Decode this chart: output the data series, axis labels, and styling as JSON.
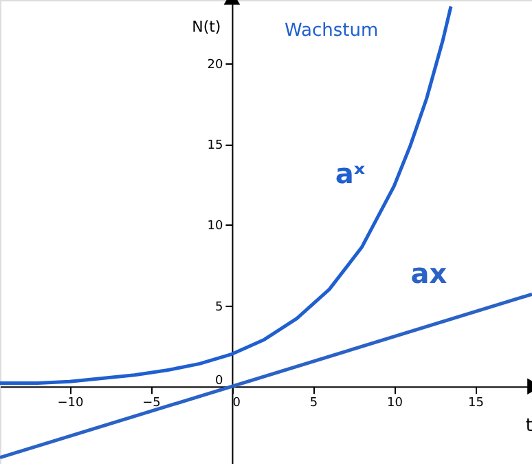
{
  "chart_data": {
    "type": "line",
    "title": "Wachstum",
    "xlabel": "t",
    "ylabel": "N(t)",
    "xlim": [
      -14.3,
      18.5
    ],
    "ylim": [
      -4.8,
      23.9
    ],
    "xticks": [
      -10,
      -5,
      0,
      5,
      10,
      15
    ],
    "yticks": [
      0,
      5,
      10,
      15,
      20
    ],
    "grid": false,
    "series": [
      {
        "name": "aˣ",
        "color": "#1f5fd0",
        "x": [
          -14.3,
          -12,
          -10,
          -8,
          -6,
          -4,
          -2,
          0,
          2,
          4,
          6,
          8,
          10,
          11,
          12,
          13,
          13.5
        ],
        "values": [
          0.2,
          0.2,
          0.3,
          0.5,
          0.7,
          1.0,
          1.4,
          2.0,
          2.9,
          4.2,
          6.0,
          8.6,
          12.4,
          14.9,
          17.8,
          21.4,
          23.5
        ]
      },
      {
        "name": "ax",
        "color": "#2a62c6",
        "x": [
          -14.3,
          18.5
        ],
        "values": [
          -4.4,
          5.7
        ]
      }
    ]
  }
}
